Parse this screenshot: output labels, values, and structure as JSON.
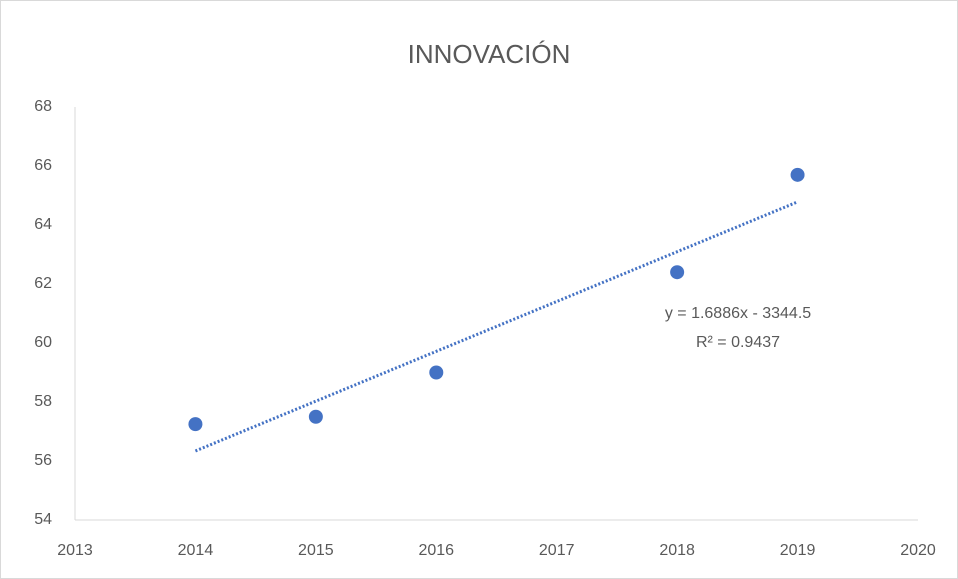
{
  "chart_data": {
    "type": "scatter",
    "title": "INNOVACIÓN",
    "x": [
      2014,
      2015,
      2016,
      2018,
      2019
    ],
    "series": [
      {
        "name": "INNOVACIÓN",
        "color": "#4472c4",
        "values": [
          57.25,
          57.5,
          59.0,
          62.4,
          65.7
        ]
      }
    ],
    "trendline": {
      "slope": 1.6886,
      "intercept": -3344.5,
      "color": "#4472c4",
      "equation": "y = 1.6886x - 3344.5",
      "r_squared": "R² = 0.9437"
    },
    "xlim": [
      2013,
      2020
    ],
    "xticks": [
      2013,
      2014,
      2015,
      2016,
      2017,
      2018,
      2019,
      2020
    ],
    "ylim": [
      54,
      68
    ],
    "yticks": [
      54,
      56,
      58,
      60,
      62,
      64,
      66,
      68
    ],
    "grid": false
  }
}
